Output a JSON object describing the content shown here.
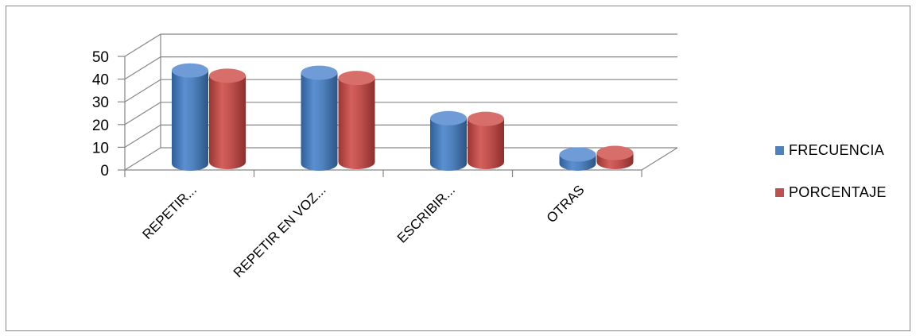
{
  "chart_data": {
    "type": "bar",
    "title": "",
    "xlabel": "",
    "ylabel": "",
    "categories": [
      "REPETIR...",
      "REPETIR EN VOZ...",
      "ESCRIBIR...",
      "OTRAS"
    ],
    "series": [
      {
        "name": "FRECUENCIA",
        "values": [
          41,
          40,
          20,
          4
        ],
        "color": "#4F81BD"
      },
      {
        "name": "PORCENTAJE",
        "values": [
          38,
          37,
          19,
          4
        ],
        "color": "#C0504D"
      }
    ],
    "ylim": [
      0,
      50
    ],
    "yticks": [
      "0",
      "10",
      "20",
      "30",
      "40",
      "50"
    ],
    "grid": true,
    "legend_position": "right",
    "style": "3d-cylinder"
  }
}
